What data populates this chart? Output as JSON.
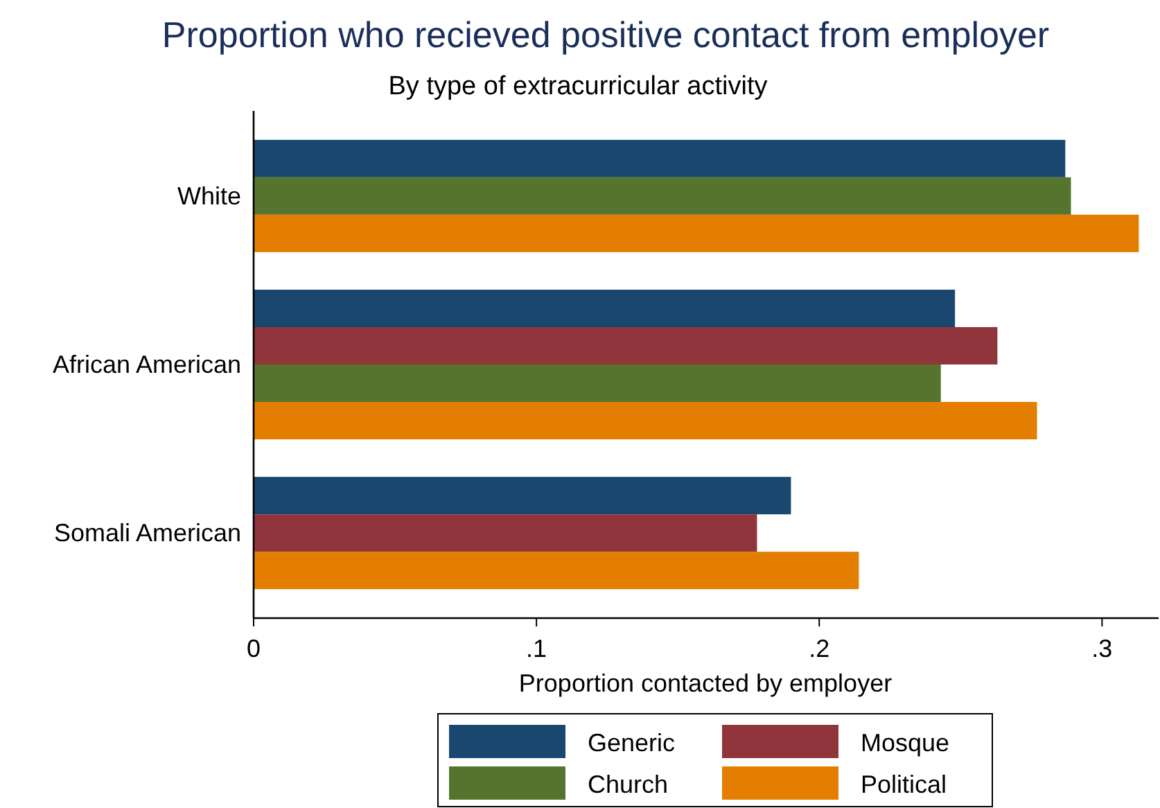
{
  "chart_data": {
    "type": "bar",
    "orientation": "horizontal",
    "title": "Proportion who recieved positive contact from employer",
    "subtitle": "By type of extracurricular activity",
    "xlabel": "Proportion contacted by employer",
    "categories": [
      "White",
      "African American",
      "Somali American"
    ],
    "series": [
      {
        "name": "Generic",
        "color": "#1a476f",
        "values": [
          0.287,
          0.248,
          0.19
        ]
      },
      {
        "name": "Mosque",
        "color": "#90353b",
        "values": [
          null,
          0.263,
          0.178
        ]
      },
      {
        "name": "Church",
        "color": "#55752f",
        "values": [
          0.289,
          0.243,
          null
        ]
      },
      {
        "name": "Political",
        "color": "#e37e00",
        "values": [
          0.313,
          0.277,
          0.214
        ]
      }
    ],
    "xlim": [
      0,
      0.32
    ],
    "xticks": [
      0,
      {
        "value": 0.1,
        "label": ".1"
      },
      {
        "value": 0.2,
        "label": ".2"
      },
      {
        "value": 0.3,
        "label": ".3"
      }
    ],
    "grid": false,
    "legend": "bottom"
  }
}
